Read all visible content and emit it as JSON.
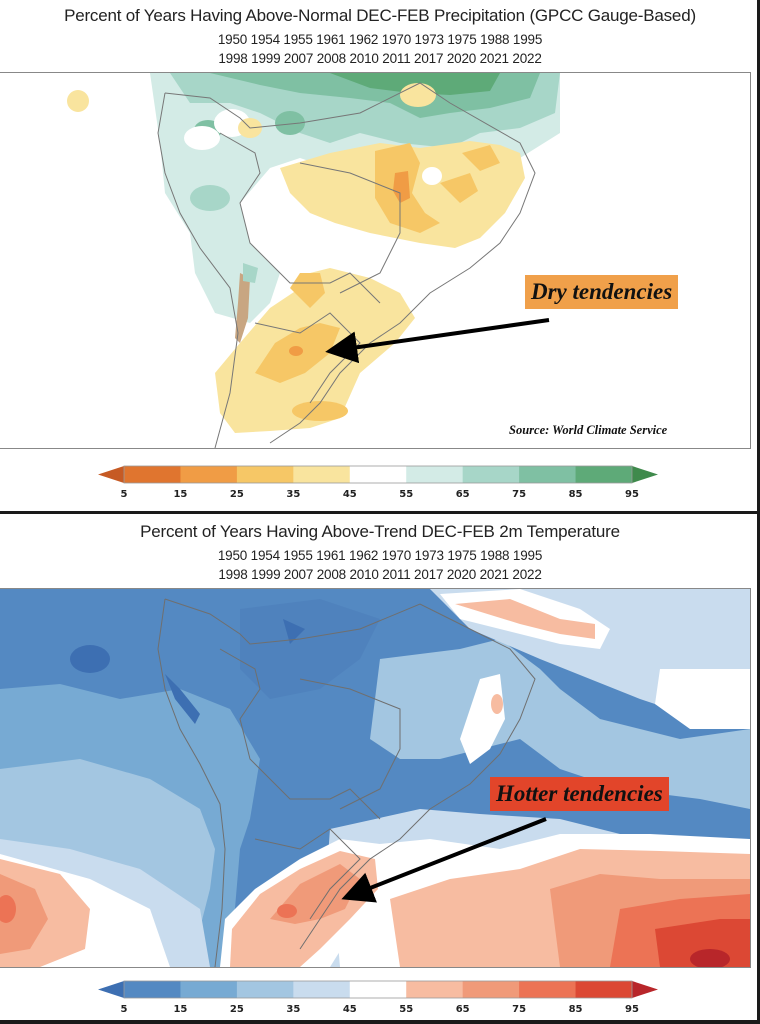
{
  "precip_panel": {
    "title": "Percent of Years Having Above-Normal DEC-FEB Precipitation (GPCC Gauge-Based)",
    "years_line1": "1950 1954 1955 1961 1962 1970 1973 1975 1988 1995",
    "years_line2": "1998 1999 2007 2008 2010 2011 2017 2020 2021 2022",
    "annotation": "Dry tendencies",
    "annotation_color": "#f0a04a",
    "source": "Source: World Climate Service",
    "colorbar": {
      "ticks": [
        "5",
        "15",
        "25",
        "35",
        "45",
        "55",
        "65",
        "75",
        "85",
        "95"
      ],
      "colors": [
        "#e0752f",
        "#f09c45",
        "#f6c766",
        "#f9e49e",
        "#ffffff",
        "#d3ebe6",
        "#a7d6c8",
        "#7fc0a3",
        "#5eaa78"
      ],
      "under_color": "#c65a24",
      "over_color": "#3f8a4c"
    }
  },
  "temp_panel": {
    "title": "Percent of Years Having Above-Trend DEC-FEB 2m Temperature",
    "years_line1": "1950 1954 1955 1961 1962 1970 1973 1975 1988 1995",
    "years_line2": "1998 1999 2007 2008 2010 2011 2017 2020 2021 2022",
    "annotation": "Hotter tendencies",
    "annotation_color": "#e2452a",
    "colorbar": {
      "ticks": [
        "5",
        "15",
        "25",
        "35",
        "45",
        "55",
        "65",
        "75",
        "85",
        "95"
      ],
      "colors": [
        "#5489c2",
        "#77aad3",
        "#a3c6e1",
        "#c9dcee",
        "#ffffff",
        "#f7bca1",
        "#f09a79",
        "#ec7355",
        "#dc4834"
      ],
      "under_color": "#3d6fb2",
      "over_color": "#b8262a"
    }
  }
}
